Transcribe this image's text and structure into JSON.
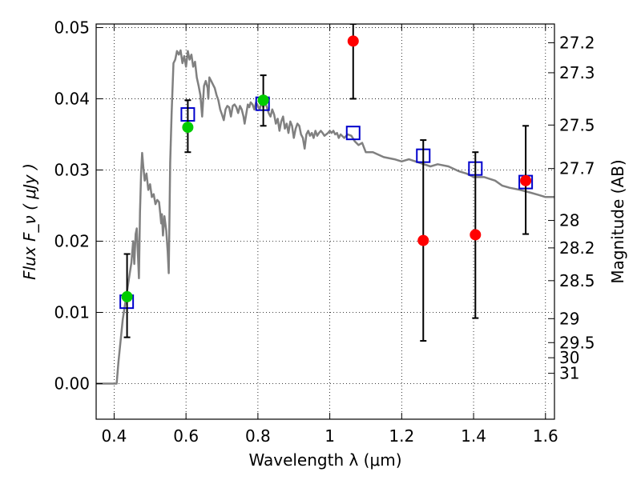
{
  "chart_data": {
    "type": "scatter",
    "xlabel": "Wavelength  λ (μm)",
    "ylabel": "Flux  F_ν  ( μJy )",
    "ylabel_right": "Magnitude (AB)",
    "xlim": [
      0.35,
      1.625
    ],
    "ylim": [
      -0.005,
      0.0505
    ],
    "grid": true,
    "x_ticks": [
      {
        "value": 0.4,
        "label": "0.4"
      },
      {
        "value": 0.6,
        "label": "0.6"
      },
      {
        "value": 0.8,
        "label": "0.8"
      },
      {
        "value": 1.0,
        "label": "1"
      },
      {
        "value": 1.2,
        "label": "1.2"
      },
      {
        "value": 1.4,
        "label": "1.4"
      },
      {
        "value": 1.6,
        "label": "1.6"
      }
    ],
    "y_ticks": [
      {
        "value": 0.0,
        "label": "0.00"
      },
      {
        "value": 0.01,
        "label": "0.01"
      },
      {
        "value": 0.02,
        "label": "0.02"
      },
      {
        "value": 0.03,
        "label": "0.03"
      },
      {
        "value": 0.04,
        "label": "0.04"
      },
      {
        "value": 0.05,
        "label": "0.05"
      }
    ],
    "y2_ticks": [
      {
        "value": 27.2,
        "label": "27.2"
      },
      {
        "value": 27.3,
        "label": "27.3"
      },
      {
        "value": 27.5,
        "label": "27.5"
      },
      {
        "value": 27.7,
        "label": "27.7"
      },
      {
        "value": 28.0,
        "label": "28"
      },
      {
        "value": 28.2,
        "label": "28.2"
      },
      {
        "value": 28.5,
        "label": "28.5"
      },
      {
        "value": 29.0,
        "label": "29"
      },
      {
        "value": 29.5,
        "label": "29.5"
      },
      {
        "value": 30.0,
        "label": "30"
      },
      {
        "value": 31.0,
        "label": "31"
      }
    ],
    "series": [
      {
        "kind": "line",
        "color": "#808080",
        "points": [
          [
            0.35,
            0.0
          ],
          [
            0.407,
            0.0
          ],
          [
            0.412,
            0.003
          ],
          [
            0.418,
            0.006
          ],
          [
            0.424,
            0.009
          ],
          [
            0.43,
            0.011
          ],
          [
            0.436,
            0.013
          ],
          [
            0.442,
            0.015
          ],
          [
            0.448,
            0.017
          ],
          [
            0.453,
            0.02
          ],
          [
            0.456,
            0.0168
          ],
          [
            0.46,
            0.021
          ],
          [
            0.463,
            0.0218
          ],
          [
            0.466,
            0.0185
          ],
          [
            0.469,
            0.0148
          ],
          [
            0.472,
            0.024
          ],
          [
            0.475,
            0.0295
          ],
          [
            0.478,
            0.0324
          ],
          [
            0.481,
            0.0305
          ],
          [
            0.485,
            0.0285
          ],
          [
            0.49,
            0.0295
          ],
          [
            0.495,
            0.0272
          ],
          [
            0.5,
            0.028
          ],
          [
            0.505,
            0.0262
          ],
          [
            0.51,
            0.0266
          ],
          [
            0.515,
            0.0252
          ],
          [
            0.52,
            0.0258
          ],
          [
            0.525,
            0.0255
          ],
          [
            0.528,
            0.024
          ],
          [
            0.531,
            0.0225
          ],
          [
            0.533,
            0.0238
          ],
          [
            0.536,
            0.0208
          ],
          [
            0.54,
            0.0235
          ],
          [
            0.545,
            0.0215
          ],
          [
            0.549,
            0.0185
          ],
          [
            0.552,
            0.0155
          ],
          [
            0.556,
            0.031
          ],
          [
            0.56,
            0.038
          ],
          [
            0.565,
            0.045
          ],
          [
            0.57,
            0.0455
          ],
          [
            0.575,
            0.0467
          ],
          [
            0.58,
            0.0462
          ],
          [
            0.585,
            0.0468
          ],
          [
            0.59,
            0.045
          ],
          [
            0.595,
            0.046
          ],
          [
            0.6,
            0.0445
          ],
          [
            0.605,
            0.0467
          ],
          [
            0.61,
            0.0455
          ],
          [
            0.615,
            0.0462
          ],
          [
            0.62,
            0.0445
          ],
          [
            0.625,
            0.0452
          ],
          [
            0.63,
            0.043
          ],
          [
            0.635,
            0.0418
          ],
          [
            0.64,
            0.0405
          ],
          [
            0.645,
            0.0375
          ],
          [
            0.65,
            0.0418
          ],
          [
            0.655,
            0.0425
          ],
          [
            0.66,
            0.0415
          ],
          [
            0.662,
            0.04
          ],
          [
            0.665,
            0.043
          ],
          [
            0.67,
            0.0425
          ],
          [
            0.675,
            0.042
          ],
          [
            0.68,
            0.0415
          ],
          [
            0.685,
            0.0405
          ],
          [
            0.69,
            0.0398
          ],
          [
            0.695,
            0.0385
          ],
          [
            0.7,
            0.0378
          ],
          [
            0.705,
            0.037
          ],
          [
            0.71,
            0.0385
          ],
          [
            0.715,
            0.039
          ],
          [
            0.72,
            0.0388
          ],
          [
            0.725,
            0.0375
          ],
          [
            0.73,
            0.039
          ],
          [
            0.735,
            0.0392
          ],
          [
            0.74,
            0.0388
          ],
          [
            0.745,
            0.038
          ],
          [
            0.75,
            0.039
          ],
          [
            0.755,
            0.0385
          ],
          [
            0.76,
            0.0375
          ],
          [
            0.763,
            0.0365
          ],
          [
            0.768,
            0.038
          ],
          [
            0.772,
            0.0392
          ],
          [
            0.776,
            0.0388
          ],
          [
            0.78,
            0.0395
          ],
          [
            0.785,
            0.0392
          ],
          [
            0.79,
            0.0385
          ],
          [
            0.795,
            0.0395
          ],
          [
            0.8,
            0.039
          ],
          [
            0.805,
            0.0385
          ],
          [
            0.81,
            0.0395
          ],
          [
            0.815,
            0.0388
          ],
          [
            0.82,
            0.0395
          ],
          [
            0.825,
            0.0388
          ],
          [
            0.83,
            0.038
          ],
          [
            0.835,
            0.0375
          ],
          [
            0.84,
            0.0385
          ],
          [
            0.845,
            0.0378
          ],
          [
            0.85,
            0.0365
          ],
          [
            0.855,
            0.0372
          ],
          [
            0.86,
            0.0355
          ],
          [
            0.865,
            0.0368
          ],
          [
            0.87,
            0.0375
          ],
          [
            0.875,
            0.0358
          ],
          [
            0.88,
            0.0365
          ],
          [
            0.885,
            0.0352
          ],
          [
            0.89,
            0.0368
          ],
          [
            0.895,
            0.0362
          ],
          [
            0.9,
            0.0345
          ],
          [
            0.905,
            0.0358
          ],
          [
            0.91,
            0.0365
          ],
          [
            0.915,
            0.0362
          ],
          [
            0.92,
            0.035
          ],
          [
            0.925,
            0.0345
          ],
          [
            0.93,
            0.033
          ],
          [
            0.935,
            0.035
          ],
          [
            0.94,
            0.0355
          ],
          [
            0.945,
            0.0348
          ],
          [
            0.95,
            0.0352
          ],
          [
            0.955,
            0.0345
          ],
          [
            0.96,
            0.0355
          ],
          [
            0.965,
            0.0348
          ],
          [
            0.97,
            0.0352
          ],
          [
            0.975,
            0.0355
          ],
          [
            0.98,
            0.0352
          ],
          [
            0.985,
            0.0348
          ],
          [
            0.99,
            0.035
          ],
          [
            0.995,
            0.0352
          ],
          [
            1.0,
            0.0355
          ],
          [
            1.005,
            0.0352
          ],
          [
            1.01,
            0.0355
          ],
          [
            1.015,
            0.035
          ],
          [
            1.02,
            0.0352
          ],
          [
            1.025,
            0.0345
          ],
          [
            1.03,
            0.035
          ],
          [
            1.04,
            0.0345
          ],
          [
            1.05,
            0.035
          ],
          [
            1.06,
            0.0348
          ],
          [
            1.07,
            0.034
          ],
          [
            1.08,
            0.0335
          ],
          [
            1.09,
            0.0338
          ],
          [
            1.1,
            0.0325
          ],
          [
            1.12,
            0.0325
          ],
          [
            1.15,
            0.0318
          ],
          [
            1.18,
            0.0315
          ],
          [
            1.2,
            0.0312
          ],
          [
            1.22,
            0.0315
          ],
          [
            1.25,
            0.031
          ],
          [
            1.28,
            0.0305
          ],
          [
            1.3,
            0.0308
          ],
          [
            1.33,
            0.0305
          ],
          [
            1.36,
            0.0298
          ],
          [
            1.38,
            0.0295
          ],
          [
            1.4,
            0.029
          ],
          [
            1.43,
            0.029
          ],
          [
            1.46,
            0.0285
          ],
          [
            1.48,
            0.0278
          ],
          [
            1.5,
            0.0275
          ],
          [
            1.53,
            0.0272
          ],
          [
            1.56,
            0.0268
          ],
          [
            1.58,
            0.0265
          ],
          [
            1.6,
            0.0262
          ],
          [
            1.625,
            0.0262
          ]
        ]
      },
      {
        "kind": "square",
        "color": "#0000cc",
        "points": [
          [
            0.435,
            0.0115
          ],
          [
            0.605,
            0.0378
          ],
          [
            0.813,
            0.0393
          ],
          [
            1.065,
            0.0352
          ],
          [
            1.26,
            0.032
          ],
          [
            1.405,
            0.0302
          ],
          [
            1.545,
            0.0283
          ]
        ]
      },
      {
        "kind": "errorbar",
        "color": "#000000",
        "points": [
          [
            0.436,
            0.0065,
            0.0182
          ],
          [
            0.605,
            0.0325,
            0.0398
          ],
          [
            0.815,
            0.0362,
            0.0433
          ],
          [
            1.065,
            0.04,
            0.0505
          ],
          [
            1.26,
            0.006,
            0.0342
          ],
          [
            1.405,
            0.0092,
            0.0325
          ],
          [
            1.545,
            0.021,
            0.0362
          ]
        ]
      },
      {
        "kind": "circle",
        "color": "#00cc00",
        "points": [
          [
            0.436,
            0.0122
          ],
          [
            0.605,
            0.036
          ],
          [
            0.815,
            0.0398
          ]
        ]
      },
      {
        "kind": "circle",
        "color": "#ff0000",
        "points": [
          [
            1.065,
            0.0481
          ],
          [
            1.26,
            0.0201
          ],
          [
            1.405,
            0.0209
          ],
          [
            1.545,
            0.0285
          ]
        ]
      }
    ]
  }
}
